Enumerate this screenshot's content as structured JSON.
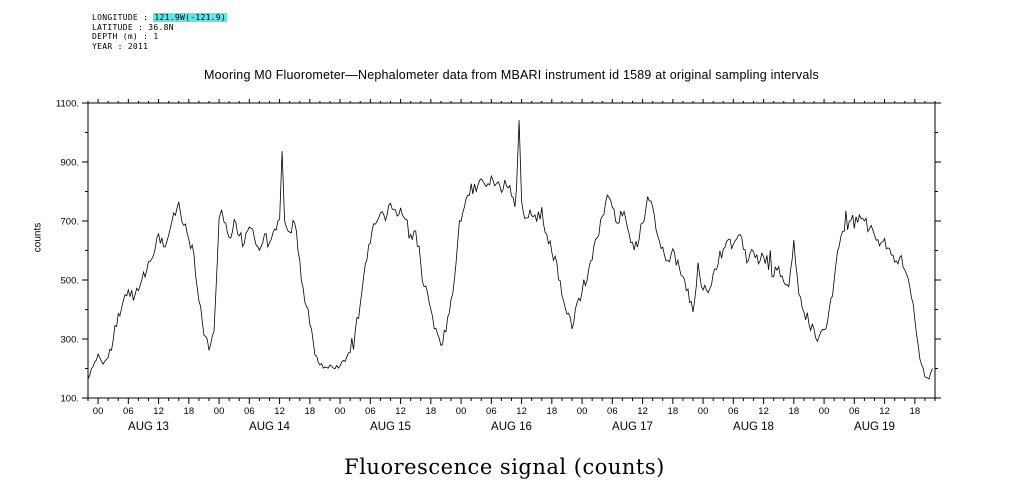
{
  "meta": {
    "longitude_label": "LONGITUDE : ",
    "longitude_value": "121.9W(-121.9)",
    "latitude": "LATITUDE : 36.8N",
    "depth": "DEPTH (m) : 1",
    "year": "YEAR : 2011",
    "highlight_color": "#5fe6e6"
  },
  "chart_data": {
    "type": "line",
    "title": "Mooring M0 Fluorometer—Nephalometer data from MBARI instrument id 1589 at original sampling intervals",
    "xlabel_bottom": "Fluorescence signal (counts)",
    "ylabel": "counts",
    "ylim": [
      100,
      1100
    ],
    "yticks": [
      100,
      300,
      500,
      700,
      900,
      1100
    ],
    "ytick_labels": [
      "100.",
      "300.",
      "500.",
      "700.",
      "900.",
      "1100."
    ],
    "x_hours_range": [
      -2,
      166
    ],
    "hour_tick_interval": 6,
    "hour_tick_labels": [
      "00",
      "06",
      "12",
      "18"
    ],
    "days": [
      "AUG 13",
      "AUG 14",
      "AUG 15",
      "AUG 16",
      "AUG 17",
      "AUG 18",
      "AUG 19"
    ],
    "line_color": "#000000",
    "grid": false,
    "series": [
      {
        "name": "fluorescence",
        "units": "counts",
        "points": [
          [
            -2,
            165
          ],
          [
            -1,
            205
          ],
          [
            0,
            250
          ],
          [
            0.5,
            230
          ],
          [
            1,
            215
          ],
          [
            2,
            235
          ],
          [
            3,
            300
          ],
          [
            4,
            380
          ],
          [
            5,
            430
          ],
          [
            6,
            465
          ],
          [
            7,
            430
          ],
          [
            8,
            470
          ],
          [
            9,
            520
          ],
          [
            10,
            555
          ],
          [
            11,
            590
          ],
          [
            12,
            650
          ],
          [
            13,
            610
          ],
          [
            14,
            655
          ],
          [
            15,
            735
          ],
          [
            16,
            760
          ],
          [
            17,
            690
          ],
          [
            18,
            645
          ],
          [
            19,
            590
          ],
          [
            20,
            430
          ],
          [
            21,
            310
          ],
          [
            22,
            262
          ],
          [
            23,
            320
          ],
          [
            24,
            715
          ],
          [
            24.5,
            730
          ],
          [
            25,
            690
          ],
          [
            26,
            640
          ],
          [
            27,
            700
          ],
          [
            28,
            655
          ],
          [
            29,
            620
          ],
          [
            30,
            680
          ],
          [
            31,
            635
          ],
          [
            32,
            605
          ],
          [
            33,
            655
          ],
          [
            34,
            620
          ],
          [
            35,
            665
          ],
          [
            36,
            700
          ],
          [
            36.5,
            930
          ],
          [
            37,
            705
          ],
          [
            38,
            660
          ],
          [
            39,
            695
          ],
          [
            40,
            560
          ],
          [
            41,
            430
          ],
          [
            42,
            350
          ],
          [
            43,
            245
          ],
          [
            44,
            215
          ],
          [
            45,
            205
          ],
          [
            46,
            212
          ],
          [
            47,
            200
          ],
          [
            48,
            210
          ],
          [
            49,
            225
          ],
          [
            50,
            255
          ],
          [
            51,
            330
          ],
          [
            52,
            420
          ],
          [
            53,
            555
          ],
          [
            54,
            630
          ],
          [
            55,
            690
          ],
          [
            56,
            725
          ],
          [
            57,
            700
          ],
          [
            58,
            755
          ],
          [
            59,
            735
          ],
          [
            60,
            745
          ],
          [
            61,
            700
          ],
          [
            62,
            655
          ],
          [
            63,
            665
          ],
          [
            64,
            560
          ],
          [
            65,
            470
          ],
          [
            66,
            395
          ],
          [
            67,
            330
          ],
          [
            68,
            272
          ],
          [
            69,
            330
          ],
          [
            70,
            430
          ],
          [
            71,
            560
          ],
          [
            72,
            700
          ],
          [
            73,
            780
          ],
          [
            74,
            820
          ],
          [
            75,
            800
          ],
          [
            76,
            845
          ],
          [
            77,
            810
          ],
          [
            78,
            855
          ],
          [
            79,
            830
          ],
          [
            80,
            800
          ],
          [
            81,
            825
          ],
          [
            82,
            785
          ],
          [
            83,
            805
          ],
          [
            83.5,
            1050
          ],
          [
            84,
            760
          ],
          [
            85,
            705
          ],
          [
            86,
            725
          ],
          [
            87,
            700
          ],
          [
            88,
            740
          ],
          [
            89,
            655
          ],
          [
            90,
            600
          ],
          [
            91,
            560
          ],
          [
            92,
            450
          ],
          [
            93,
            385
          ],
          [
            94,
            340
          ],
          [
            95,
            430
          ],
          [
            96,
            465
          ],
          [
            97,
            505
          ],
          [
            98,
            565
          ],
          [
            99,
            645
          ],
          [
            100,
            720
          ],
          [
            101,
            780
          ],
          [
            102,
            740
          ],
          [
            103,
            700
          ],
          [
            104,
            725
          ],
          [
            105,
            680
          ],
          [
            106,
            625
          ],
          [
            107,
            605
          ],
          [
            108,
            700
          ],
          [
            109,
            775
          ],
          [
            110,
            740
          ],
          [
            111,
            655
          ],
          [
            112,
            605
          ],
          [
            113,
            565
          ],
          [
            114,
            600
          ],
          [
            115,
            560
          ],
          [
            116,
            520
          ],
          [
            117,
            465
          ],
          [
            118,
            385
          ],
          [
            119,
            560
          ],
          [
            120,
            470
          ],
          [
            121,
            450
          ],
          [
            122,
            520
          ],
          [
            123,
            560
          ],
          [
            124,
            605
          ],
          [
            125,
            640
          ],
          [
            126,
            615
          ],
          [
            127,
            650
          ],
          [
            128,
            600
          ],
          [
            129,
            560
          ],
          [
            130,
            600
          ],
          [
            131,
            560
          ],
          [
            132,
            580
          ],
          [
            133,
            550
          ],
          [
            134,
            520
          ],
          [
            135,
            545
          ],
          [
            136,
            500
          ],
          [
            137,
            480
          ],
          [
            138,
            640
          ],
          [
            139,
            450
          ],
          [
            140,
            400
          ],
          [
            141,
            350
          ],
          [
            142,
            330
          ],
          [
            143,
            300
          ],
          [
            144,
            330
          ],
          [
            145,
            400
          ],
          [
            146,
            500
          ],
          [
            147,
            620
          ],
          [
            148,
            680
          ],
          [
            149,
            700
          ],
          [
            150,
            680
          ],
          [
            151,
            720
          ],
          [
            152,
            700
          ],
          [
            153,
            675
          ],
          [
            154,
            650
          ],
          [
            155,
            620
          ],
          [
            156,
            640
          ],
          [
            157,
            600
          ],
          [
            158,
            555
          ],
          [
            159,
            580
          ],
          [
            160,
            540
          ],
          [
            161,
            480
          ],
          [
            162,
            360
          ],
          [
            163,
            230
          ],
          [
            164,
            172
          ],
          [
            164.8,
            165
          ],
          [
            165.5,
            200
          ]
        ]
      }
    ]
  }
}
